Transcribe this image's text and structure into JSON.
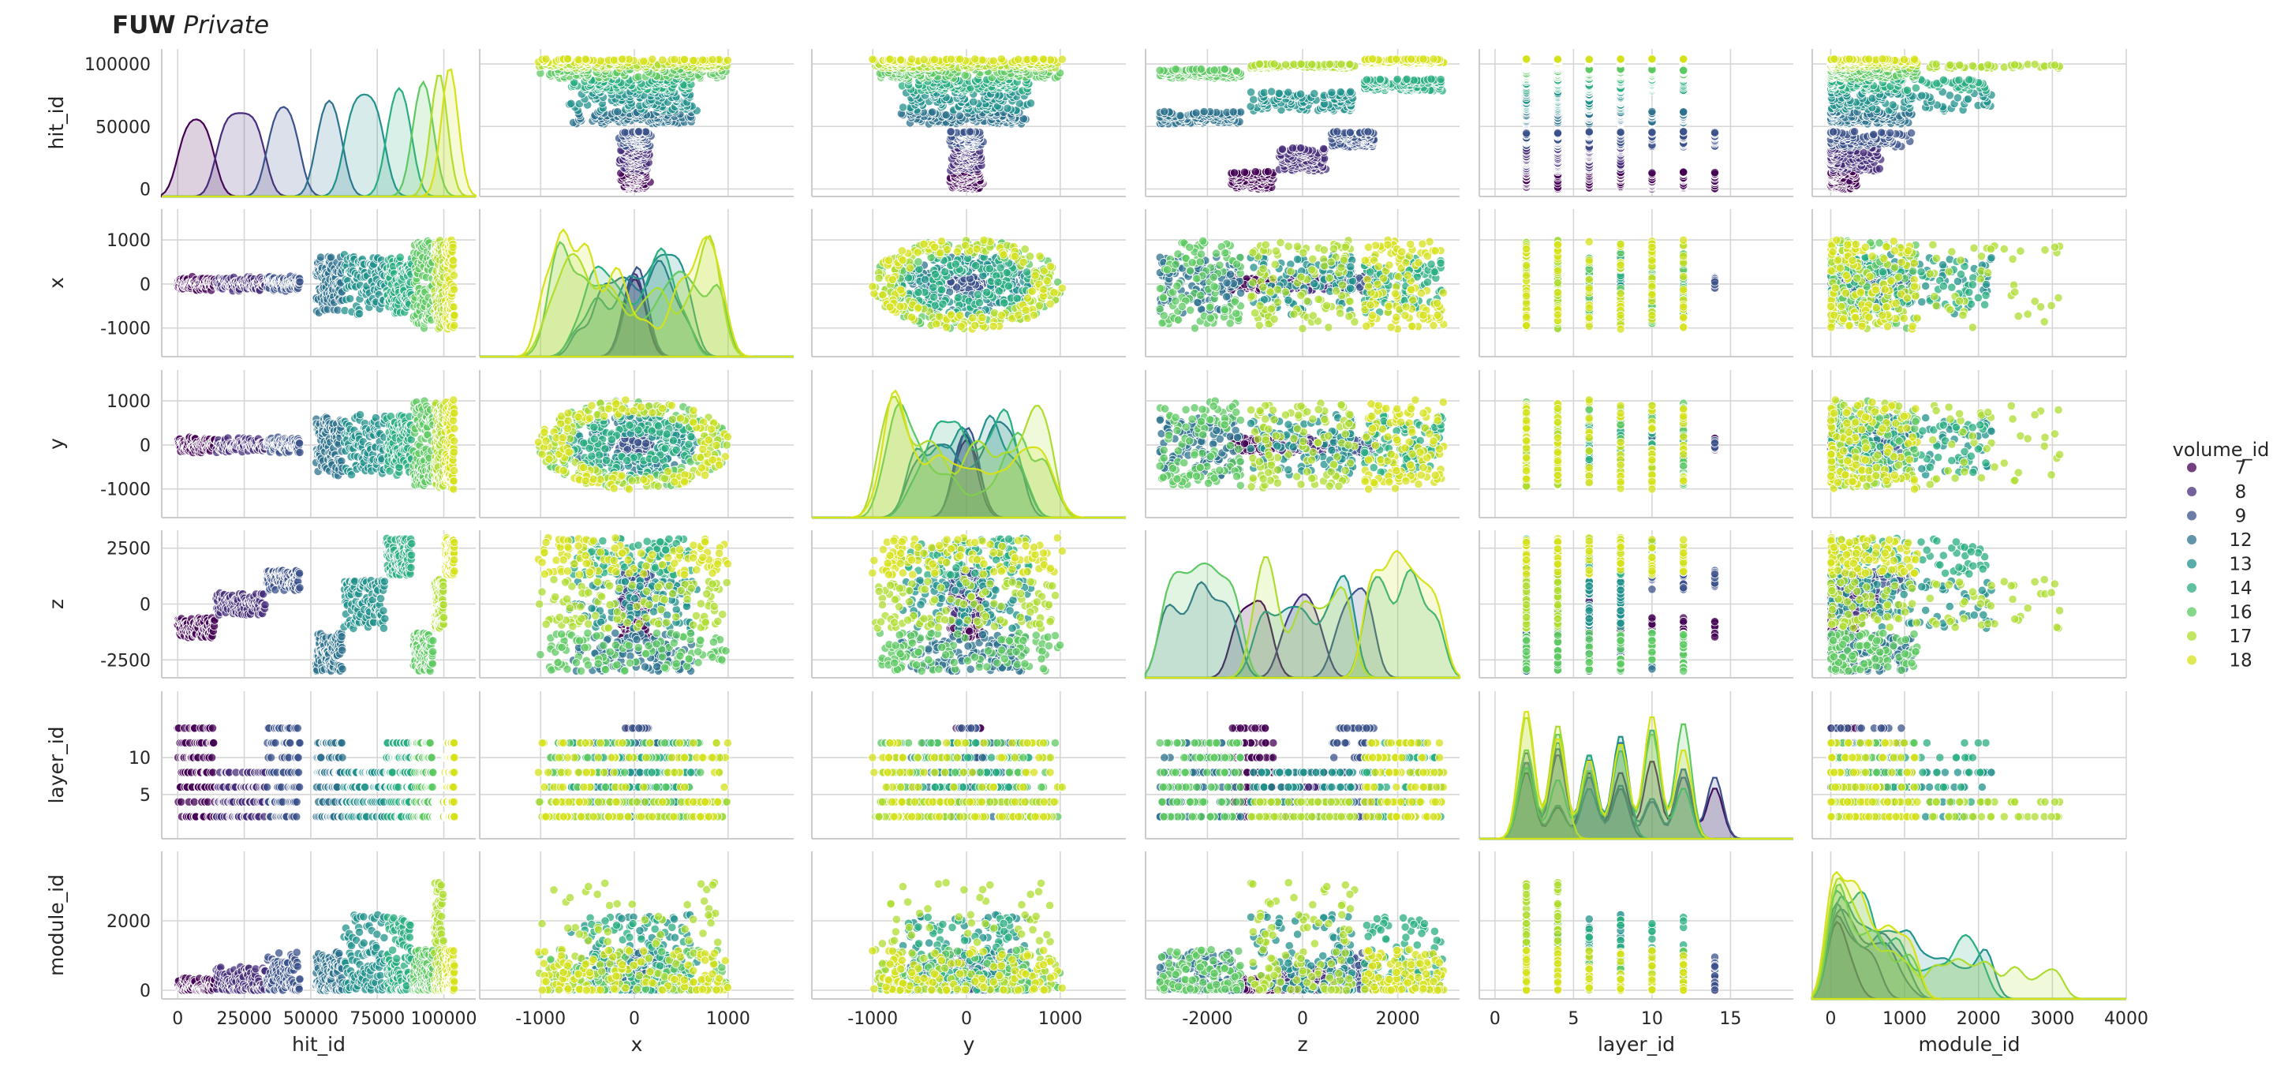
{
  "header": {
    "brand": "FUW",
    "label": "Private"
  },
  "chart_data": {
    "type": "scatter",
    "kind": "pairplot",
    "variables": [
      "hit_id",
      "x",
      "y",
      "z",
      "layer_id",
      "module_id"
    ],
    "hue": "volume_id",
    "diagonal": "kde",
    "grid": true,
    "legend": {
      "title": "volume_id",
      "position": "right",
      "entries": [
        {
          "label": "7",
          "color": "#440154"
        },
        {
          "label": "8",
          "color": "#472d7b"
        },
        {
          "label": "9",
          "color": "#3b528b"
        },
        {
          "label": "12",
          "color": "#2c728e"
        },
        {
          "label": "13",
          "color": "#21918c"
        },
        {
          "label": "14",
          "color": "#28ae80"
        },
        {
          "label": "16",
          "color": "#5ec962"
        },
        {
          "label": "17",
          "color": "#addc30"
        },
        {
          "label": "18",
          "color": "#d5e21a"
        }
      ]
    },
    "axes": {
      "hit_id": {
        "range": [
          -6000,
          112000
        ],
        "ticks": [
          "0",
          "25000",
          "50000",
          "75000",
          "100000"
        ],
        "tick_values": [
          0,
          25000,
          50000,
          75000,
          100000
        ],
        "y_ticks": [
          "0",
          "50000",
          "100000"
        ],
        "y_tick_values": [
          0,
          50000,
          100000
        ]
      },
      "x": {
        "range": [
          -1650,
          1700
        ],
        "ticks": [
          "-1000",
          "0",
          "1000"
        ],
        "tick_values": [
          -1000,
          0,
          1000
        ],
        "y_ticks": [
          "-1000",
          "0",
          "1000"
        ],
        "y_tick_values": [
          -1000,
          0,
          1000
        ]
      },
      "y": {
        "range": [
          -1650,
          1700
        ],
        "ticks": [
          "-1000",
          "0",
          "1000"
        ],
        "tick_values": [
          -1000,
          0,
          1000
        ],
        "y_ticks": [
          "-1000",
          "0",
          "1000"
        ],
        "y_tick_values": [
          -1000,
          0,
          1000
        ]
      },
      "z": {
        "range": [
          -3300,
          3300
        ],
        "ticks": [
          "-2000",
          "0",
          "2000"
        ],
        "tick_values": [
          -2000,
          0,
          2000
        ],
        "y_ticks": [
          "-2500",
          "0",
          "2500"
        ],
        "y_tick_values": [
          -2500,
          0,
          2500
        ]
      },
      "layer_id": {
        "range": [
          -1,
          19
        ],
        "ticks": [
          "0",
          "5",
          "10",
          "15"
        ],
        "tick_values": [
          0,
          5,
          10,
          15
        ],
        "y_ticks": [
          "5",
          "10"
        ],
        "y_tick_values": [
          5,
          10
        ]
      },
      "module_id": {
        "range": [
          -250,
          4000
        ],
        "ticks": [
          "0",
          "1000",
          "2000",
          "3000",
          "4000"
        ],
        "tick_values": [
          0,
          1000,
          2000,
          3000,
          4000
        ],
        "y_ticks": [
          "0",
          "2000"
        ],
        "y_tick_values": [
          0,
          2000
        ]
      }
    },
    "groups": [
      {
        "volume_id": 7,
        "hit_id": [
          0,
          14000
        ],
        "layers": [
          2,
          4,
          6,
          8,
          10,
          12,
          14
        ],
        "r": [
          30,
          180
        ],
        "z": [
          -1500,
          -600
        ],
        "module": [
          0,
          300
        ],
        "module_max": 350
      },
      {
        "volume_id": 8,
        "hit_id": [
          14500,
          33000
        ],
        "layers": [
          2,
          4,
          6,
          8
        ],
        "r": [
          30,
          170
        ],
        "z": [
          -500,
          500
        ],
        "module": [
          0,
          500
        ],
        "module_max": 700
      },
      {
        "volume_id": 9,
        "hit_id": [
          33500,
          46000
        ],
        "layers": [
          2,
          4,
          6,
          8,
          10,
          12,
          14
        ],
        "r": [
          30,
          180
        ],
        "z": [
          600,
          1500
        ],
        "module": [
          0,
          1000
        ],
        "module_max": 1100
      },
      {
        "volume_id": 12,
        "hit_id": [
          52000,
          62000
        ],
        "layers": [
          2,
          4,
          6,
          8,
          10,
          12
        ],
        "r": [
          250,
          700
        ],
        "z": [
          -3000,
          -1300
        ],
        "module": [
          0,
          1000
        ],
        "module_max": 1100
      },
      {
        "volume_id": 13,
        "hit_id": [
          62500,
          78000
        ],
        "layers": [
          2,
          4,
          6,
          8
        ],
        "r": [
          250,
          700
        ],
        "z": [
          -1100,
          1100
        ],
        "module": [
          0,
          2200
        ],
        "module_max": 2200
      },
      {
        "volume_id": 14,
        "hit_id": [
          78500,
          88000
        ],
        "layers": [
          2,
          4,
          6,
          8,
          10,
          12
        ],
        "r": [
          250,
          700
        ],
        "z": [
          1300,
          3000
        ],
        "module": [
          0,
          2000
        ],
        "module_max": 2100
      },
      {
        "volume_id": 16,
        "hit_id": [
          88500,
          96000
        ],
        "layers": [
          2,
          4,
          6,
          8,
          10,
          12
        ],
        "r": [
          700,
          1025
        ],
        "z": [
          -3000,
          -1300
        ],
        "module": [
          0,
          1100
        ],
        "module_max": 1200
      },
      {
        "volume_id": 17,
        "hit_id": [
          96500,
          100000
        ],
        "layers": [
          2,
          4
        ],
        "r": [
          700,
          1025
        ],
        "z": [
          -1100,
          1100
        ],
        "module": [
          0,
          3100
        ],
        "module_max": 3100
      },
      {
        "volume_id": 18,
        "hit_id": [
          100500,
          104000
        ],
        "layers": [
          2,
          4,
          6,
          8,
          10,
          12
        ],
        "r": [
          700,
          1025
        ],
        "z": [
          1300,
          3000
        ],
        "module": [
          0,
          1100
        ],
        "module_max": 1200
      }
    ]
  }
}
